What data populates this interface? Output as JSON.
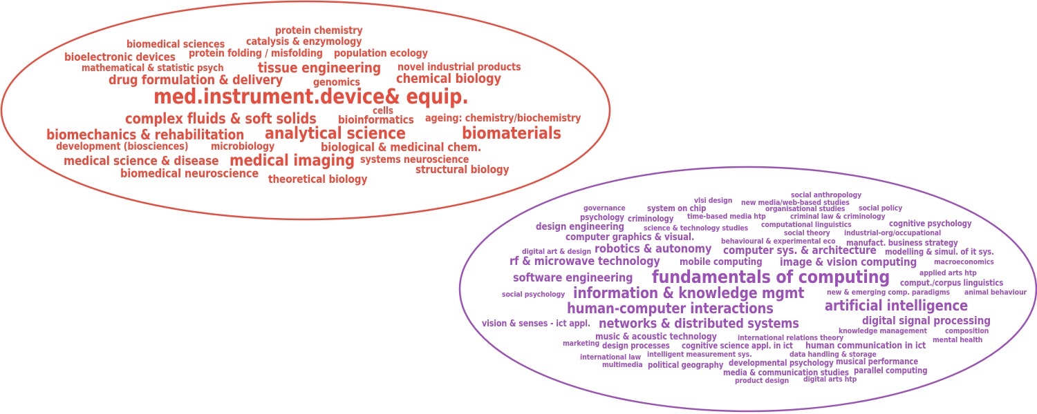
{
  "clusters": [
    {
      "id": "life-sciences",
      "color": "#e84c3d",
      "words": [
        "protein chemistry",
        "biomedical sciences",
        "catalysis & enzymology",
        "bioelectronic devices",
        "protein folding / misfolding",
        "population ecology",
        "mathematical & statistic psych",
        "tissue engineering",
        "novel industrial products",
        "drug formulation & delivery",
        "genomics",
        "chemical biology",
        "med.instrument.device& equip.",
        "cells",
        "complex fluids & soft solids",
        "bioinformatics",
        "ageing: chemistry/biochemistry",
        "biomechanics & rehabilitation",
        "analytical science",
        "biomaterials",
        "development (biosciences)",
        "microbiology",
        "biological & medicinal chem.",
        "medical science & disease",
        "medical imaging",
        "systems neuroscience",
        "structural biology",
        "biomedical neuroscience",
        "theoretical biology"
      ]
    },
    {
      "id": "computing-and-social",
      "color": "#9b51b7",
      "words": [
        "social anthropology",
        "vlsi design",
        "new media/web-based studies",
        "governance",
        "system on chip",
        "organisational studies",
        "social policy",
        "psychology",
        "criminology",
        "time-based media htp",
        "criminal law & criminology",
        "design engineering",
        "science & technology studies",
        "computational linguistics",
        "cognitive psychology",
        "computer graphics & visual.",
        "social theory",
        "industrial-org/occupational",
        "behavioural & experimental eco",
        "manufact. business strategy",
        "digital art & design",
        "robotics & autonomy",
        "computer sys. & architecture",
        "modelling & simul. of it sys.",
        "rf & microwave technology",
        "mobile computing",
        "image & vision computing",
        "macroeconomics",
        "applied arts htp",
        "software engineering",
        "fundamentals of computing",
        "comput./corpus linguistics",
        "social psychology",
        "information & knowledge mgmt",
        "new & emerging comp. paradigms",
        "animal behaviour",
        "human-computer interactions",
        "artificial intelligence",
        "vision & senses - ict appl.",
        "networks & distributed systems",
        "digital signal processing",
        "knowledge management",
        "composition",
        "music & acoustic technology",
        "international relations theory",
        "mental health",
        "marketing",
        "design processes",
        "cognitive science appl. in ict",
        "human communication in ict",
        "international law",
        "intelligent measurement sys.",
        "data handling & storage",
        "multimedia",
        "political geography",
        "developmental psychology",
        "musical performance",
        "media & communication studies",
        "parallel computing",
        "product design",
        "digital arts htp"
      ]
    }
  ]
}
